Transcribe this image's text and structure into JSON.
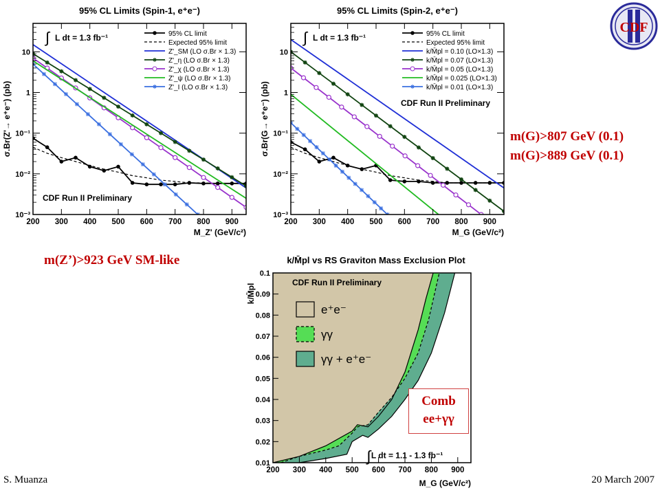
{
  "annotations": {
    "zprime_limit": "m(Z’)>923 GeV SM-like",
    "graviton_limit_1": "m(G)>807 GeV (0.1)",
    "graviton_limit_2": "m(G)>889 GeV (0.1)",
    "comb_line1": "Comb",
    "comb_line2": "ee+γγ"
  },
  "footer": {
    "author": "S. Muanza",
    "date": "20 March 2007"
  },
  "logo": {
    "text": "CDF"
  },
  "chart_data": [
    {
      "type": "line",
      "title": "95% CL Limits (Spin-1, e⁺e⁻)",
      "ylabel": "σ.Br(Z'→ e⁺e⁻) (pb)",
      "xlabel": "M_Z' (GeV/c²)",
      "xlim": [
        200,
        950
      ],
      "ylim": [
        0.001,
        50
      ],
      "yscale": "log",
      "xticks": [
        200,
        300,
        400,
        500,
        600,
        700,
        800,
        900
      ],
      "yticks": [
        {
          "v": 10,
          "label": "10"
        },
        {
          "v": 1,
          "label": "1"
        },
        {
          "v": 0.1,
          "label": "10⁻¹"
        },
        {
          "v": 0.01,
          "label": "10⁻²"
        },
        {
          "v": 0.001,
          "label": "10⁻³"
        }
      ],
      "integral_label": "L dt =  1.3 fb⁻¹",
      "note": "CDF Run II Preliminary",
      "legend_position": "top-right",
      "series": [
        {
          "name": "95% CL limit",
          "color": "#000000",
          "style": "solid-dots",
          "x": [
            200,
            250,
            300,
            350,
            400,
            450,
            500,
            550,
            600,
            650,
            700,
            750,
            800,
            850,
            900,
            950
          ],
          "y": [
            0.075,
            0.045,
            0.02,
            0.025,
            0.015,
            0.012,
            0.015,
            0.006,
            0.0055,
            0.0055,
            0.0055,
            0.006,
            0.0058,
            0.0058,
            0.0058,
            0.0058
          ]
        },
        {
          "name": "Expected 95% limit",
          "color": "#000000",
          "style": "dashed",
          "x": [
            200,
            250,
            300,
            350,
            400,
            450,
            500,
            550,
            600,
            650,
            700,
            750,
            800,
            850,
            900,
            950
          ],
          "y": [
            0.045,
            0.032,
            0.025,
            0.02,
            0.016,
            0.013,
            0.011,
            0.009,
            0.008,
            0.007,
            0.0065,
            0.006,
            0.006,
            0.0058,
            0.0058,
            0.0058
          ]
        },
        {
          "name": "Z'_SM (LO σ.Br × 1.3)",
          "color": "#1f2fd6",
          "style": "solid",
          "x": [
            200,
            950
          ],
          "y": [
            15,
            0.0045
          ]
        },
        {
          "name": "Z'_η (LO σ.Br × 1.3)",
          "color": "#114411",
          "style": "stars",
          "x": [
            200,
            950
          ],
          "y": [
            9,
            0.005
          ]
        },
        {
          "name": "Z'_χ (LO σ.Br × 1.3)",
          "color": "#9933cc",
          "style": "circles",
          "x": [
            200,
            950
          ],
          "y": [
            7,
            0.0015
          ]
        },
        {
          "name": "Z'_ψ (LO σ.Br × 1.3)",
          "color": "#22bb22",
          "style": "solid",
          "x": [
            200,
            950
          ],
          "y": [
            6,
            0.0025
          ]
        },
        {
          "name": "Z'_I (LO σ.Br × 1.3)",
          "color": "#3a6fe0",
          "style": "crosses",
          "x": [
            200,
            780
          ],
          "y": [
            5,
            0.001
          ]
        }
      ]
    },
    {
      "type": "line",
      "title": "95% CL Limits (Spin-2, e⁺e⁻)",
      "ylabel": "σ.Br(G→ e⁺e⁻) (pb)",
      "xlabel": "M_G (GeV/c²)",
      "xlim": [
        200,
        950
      ],
      "ylim": [
        0.001,
        50
      ],
      "yscale": "log",
      "xticks": [
        200,
        300,
        400,
        500,
        600,
        700,
        800,
        900
      ],
      "yticks": [
        {
          "v": 10,
          "label": "10"
        },
        {
          "v": 1,
          "label": "1"
        },
        {
          "v": 0.1,
          "label": "10⁻¹"
        },
        {
          "v": 0.01,
          "label": "10⁻²"
        },
        {
          "v": 0.001,
          "label": "10⁻³"
        }
      ],
      "integral_label": "L dt =  1.3 fb⁻¹",
      "note": "CDF Run II Preliminary",
      "legend_position": "top-right",
      "series": [
        {
          "name": "95% CL limit",
          "color": "#000000",
          "style": "solid-dots",
          "x": [
            200,
            250,
            300,
            350,
            400,
            450,
            500,
            550,
            600,
            650,
            700,
            750,
            800,
            850,
            900,
            950
          ],
          "y": [
            0.06,
            0.04,
            0.02,
            0.025,
            0.016,
            0.013,
            0.016,
            0.007,
            0.0065,
            0.0065,
            0.006,
            0.006,
            0.006,
            0.006,
            0.006,
            0.006
          ]
        },
        {
          "name": "Expected 95% limit",
          "color": "#000000",
          "style": "dashed",
          "x": [
            200,
            250,
            300,
            350,
            400,
            450,
            500,
            550,
            600,
            650,
            700,
            750,
            800,
            850,
            900,
            950
          ],
          "y": [
            0.045,
            0.032,
            0.025,
            0.02,
            0.016,
            0.013,
            0.011,
            0.009,
            0.008,
            0.007,
            0.0065,
            0.006,
            0.006,
            0.006,
            0.006,
            0.006
          ]
        },
        {
          "name": "k/M̄pl = 0.10 (LO×1.3)",
          "color": "#1f2fd6",
          "style": "solid",
          "x": [
            200,
            950
          ],
          "y": [
            20,
            0.0045
          ]
        },
        {
          "name": "k/M̄pl = 0.07 (LO×1.3)",
          "color": "#114411",
          "style": "stars",
          "x": [
            200,
            950
          ],
          "y": [
            10,
            0.0012
          ]
        },
        {
          "name": "k/M̄pl = 0.05 (LO×1.3)",
          "color": "#9933cc",
          "style": "circles",
          "x": [
            200,
            870
          ],
          "y": [
            4,
            0.001
          ]
        },
        {
          "name": "k/M̄pl = 0.025 (LO×1.3)",
          "color": "#22bb22",
          "style": "solid",
          "x": [
            200,
            720
          ],
          "y": [
            0.9,
            0.001
          ]
        },
        {
          "name": "k/M̄pl = 0.01 (LO×1.3)",
          "color": "#3a6fe0",
          "style": "crosses",
          "x": [
            200,
            540
          ],
          "y": [
            0.18,
            0.001
          ]
        }
      ]
    },
    {
      "type": "area",
      "title": "k/M̄pl vs RS Graviton Mass Exclusion Plot",
      "ylabel": "k/M̄pl",
      "xlabel": "M_G (GeV/c²)",
      "xlim": [
        200,
        950
      ],
      "ylim": [
        0.01,
        0.1
      ],
      "xticks": [
        200,
        300,
        400,
        500,
        600,
        700,
        800,
        900
      ],
      "yticks": [
        0.01,
        0.02,
        0.03,
        0.04,
        0.05,
        0.06,
        0.07,
        0.08,
        0.09,
        0.1
      ],
      "note": "CDF Run II Preliminary",
      "integral_label": "L dt =  1.1 - 1.3 fb⁻¹",
      "legend_position": "top-left",
      "series": [
        {
          "name": "e⁺e⁻",
          "color": "#d2c6a8",
          "x": [
            200,
            300,
            400,
            500,
            520,
            560,
            600,
            650,
            700,
            750,
            780,
            807
          ],
          "y": [
            0.01,
            0.013,
            0.018,
            0.025,
            0.028,
            0.027,
            0.032,
            0.04,
            0.053,
            0.073,
            0.088,
            0.1
          ]
        },
        {
          "name": "γγ",
          "color": "#55dd55",
          "x": [
            230,
            300,
            400,
            450,
            500,
            520,
            560,
            600,
            650,
            700,
            750,
            790,
            830
          ],
          "y": [
            0.01,
            0.013,
            0.016,
            0.018,
            0.024,
            0.027,
            0.028,
            0.034,
            0.041,
            0.05,
            0.062,
            0.078,
            0.1
          ]
        },
        {
          "name": "γγ + e⁺e⁻",
          "color": "#5fad8f",
          "x": [
            300,
            400,
            480,
            500,
            540,
            560,
            600,
            650,
            700,
            750,
            800,
            850,
            889
          ],
          "y": [
            0.01,
            0.012,
            0.014,
            0.02,
            0.023,
            0.022,
            0.026,
            0.032,
            0.04,
            0.049,
            0.062,
            0.081,
            0.1
          ]
        }
      ]
    }
  ]
}
